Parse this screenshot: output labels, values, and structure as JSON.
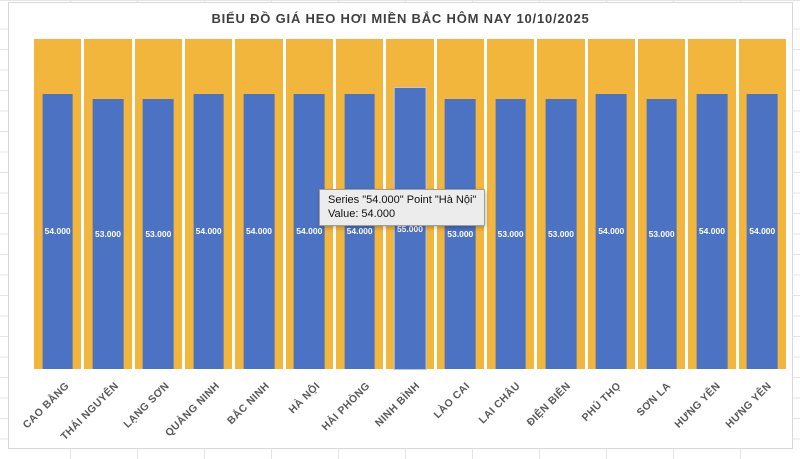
{
  "chart_data": {
    "type": "bar",
    "title": "BIỂU ĐỒ GIÁ HEO HƠI MIỀN BẮC HÔM NAY 10/10/2025",
    "categories": [
      "CAO BẰNG",
      "THÁI NGUYÊN",
      "LẠNG SƠN",
      "QUẢNG NINH",
      "BẮC NINH",
      "HÀ NỘI",
      "HẢI PHÒNG",
      "NINH BÌNH",
      "LÀO CAI",
      "LAI CHÂU",
      "ĐIỆN BIÊN",
      "PHÚ THỌ",
      "SƠN LA",
      "HƯNG YÊN",
      "HƯNG YÊN"
    ],
    "values": [
      54000,
      53000,
      53000,
      54000,
      54000,
      54000,
      54000,
      55000,
      53000,
      53000,
      53000,
      54000,
      53000,
      54000,
      54000
    ],
    "value_labels": [
      "54.000",
      "53.000",
      "53.000",
      "54.000",
      "54.000",
      "54.000",
      "54.000",
      "55.000",
      "53.000",
      "53.000",
      "53.000",
      "54.000",
      "53.000",
      "54.000",
      "54.000"
    ],
    "xlabel": "",
    "ylabel": "",
    "ylim": [
      0,
      64700
    ],
    "legend": "none",
    "grid": "vertical white category separators on gold plot background",
    "data_label_position": "center",
    "highlighted_index": 7
  },
  "tooltip": {
    "line1": "Series \"54.000\" Point \"Hà Nội\"",
    "line2": "Value: 54.000"
  },
  "colors": {
    "bar_blue": "#4c72c4",
    "plot_gold": "#f2b63d",
    "title_text": "#3f3f3f",
    "axis_text": "#595959",
    "tooltip_bg": "#ececec",
    "chart_bg": "#ffffff",
    "gridline": "#e4e4e4"
  }
}
